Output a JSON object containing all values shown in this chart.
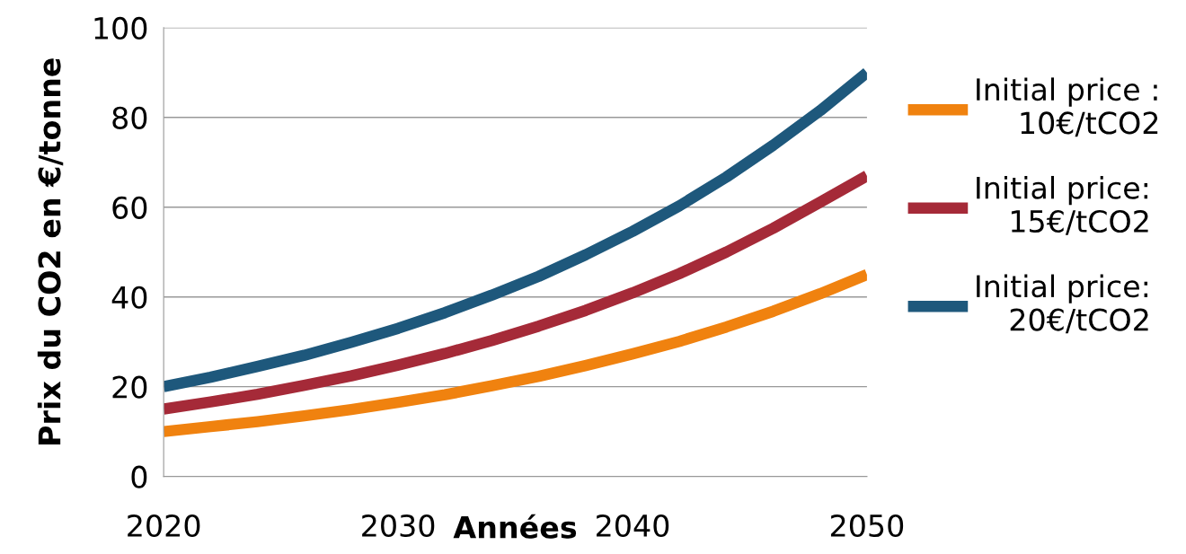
{
  "chart_data": {
    "type": "line",
    "xlabel": "Années",
    "ylabel": "Prix du CO2 en €/tonne",
    "x": [
      2020,
      2022,
      2024,
      2026,
      2028,
      2030,
      2032,
      2034,
      2036,
      2038,
      2040,
      2042,
      2044,
      2046,
      2048,
      2050
    ],
    "series": [
      {
        "name": "Initial price :\n10€/tCO2",
        "color": "#f0820f",
        "values": [
          10,
          11.1,
          12.2,
          13.5,
          14.9,
          16.5,
          18.2,
          20.2,
          22.3,
          24.7,
          27.3,
          30.1,
          33.3,
          36.8,
          40.7,
          45
        ]
      },
      {
        "name": "Initial price:\n15€/tCO2",
        "color": "#a52a38",
        "values": [
          15,
          16.6,
          18.3,
          20.3,
          22.4,
          24.8,
          27.4,
          30.3,
          33.5,
          37.0,
          40.9,
          45.2,
          50.0,
          55.3,
          61.1,
          67
        ]
      },
      {
        "name": "Initial price:\n20€/tCO2",
        "color": "#1e587c",
        "values": [
          20,
          22.1,
          24.5,
          27.0,
          29.9,
          33.0,
          36.5,
          40.4,
          44.6,
          49.4,
          54.6,
          60.3,
          66.7,
          73.8,
          81.5,
          90
        ]
      }
    ],
    "xlim": [
      2020,
      2050
    ],
    "xticks": [
      2020,
      2030,
      2040,
      2050
    ],
    "ylim": [
      0,
      100
    ],
    "yticks": [
      0,
      20,
      40,
      60,
      80,
      100
    ],
    "grid": "y",
    "legend": "right",
    "marker": "none",
    "line_style": "solid"
  }
}
